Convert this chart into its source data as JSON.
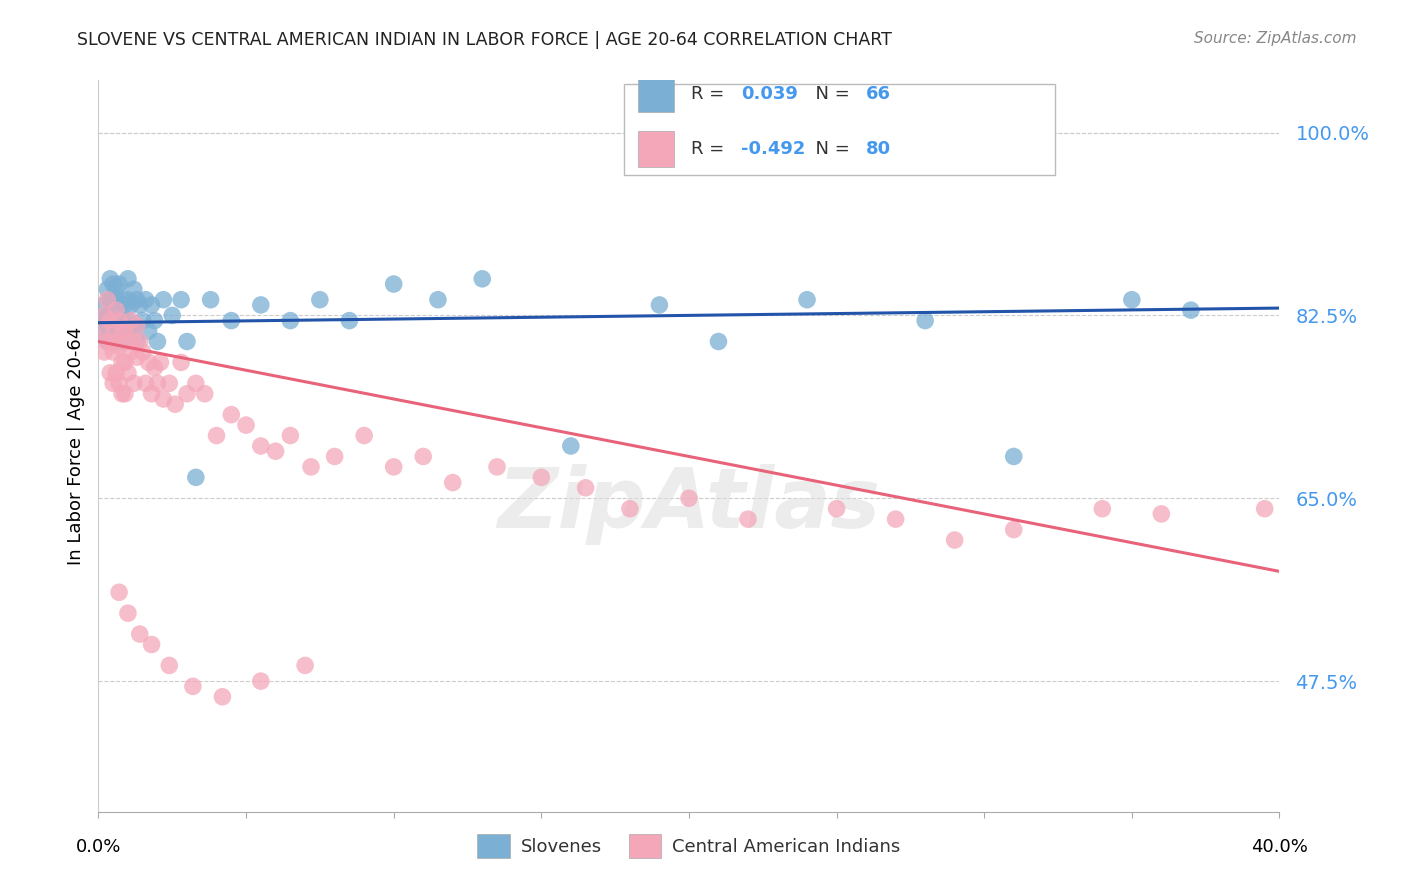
{
  "title": "SLOVENE VS CENTRAL AMERICAN INDIAN IN LABOR FORCE | AGE 20-64 CORRELATION CHART",
  "source": "Source: ZipAtlas.com",
  "ylabel": "In Labor Force | Age 20-64",
  "xmin": 0.0,
  "xmax": 0.4,
  "ymin": 0.35,
  "ymax": 1.05,
  "ytick_vals": [
    0.475,
    0.65,
    0.825,
    1.0
  ],
  "ytick_labels": [
    "47.5%",
    "65.0%",
    "82.5%",
    "100.0%"
  ],
  "color_blue": "#7BAFD4",
  "color_pink": "#F4A7B9",
  "color_blue_line": "#2255AA",
  "color_pink_line": "#E8637A",
  "color_axis_labels": "#4499EE",
  "color_grid": "#CCCCCC",
  "blue_line_y0": 0.818,
  "blue_line_y1": 0.832,
  "pink_line_y0": 0.8,
  "pink_line_y1": 0.58,
  "slovene_x": [
    0.001,
    0.002,
    0.002,
    0.003,
    0.003,
    0.003,
    0.004,
    0.004,
    0.004,
    0.004,
    0.005,
    0.005,
    0.005,
    0.005,
    0.006,
    0.006,
    0.006,
    0.006,
    0.007,
    0.007,
    0.007,
    0.007,
    0.008,
    0.008,
    0.008,
    0.009,
    0.009,
    0.009,
    0.01,
    0.01,
    0.01,
    0.011,
    0.011,
    0.012,
    0.012,
    0.013,
    0.013,
    0.014,
    0.015,
    0.016,
    0.017,
    0.018,
    0.019,
    0.02,
    0.022,
    0.025,
    0.028,
    0.03,
    0.033,
    0.038,
    0.045,
    0.055,
    0.065,
    0.075,
    0.085,
    0.1,
    0.115,
    0.13,
    0.16,
    0.19,
    0.21,
    0.24,
    0.28,
    0.31,
    0.35,
    0.37
  ],
  "slovene_y": [
    0.82,
    0.835,
    0.81,
    0.85,
    0.825,
    0.8,
    0.84,
    0.82,
    0.86,
    0.81,
    0.835,
    0.815,
    0.855,
    0.8,
    0.84,
    0.82,
    0.85,
    0.805,
    0.835,
    0.815,
    0.855,
    0.8,
    0.84,
    0.82,
    0.81,
    0.835,
    0.815,
    0.8,
    0.84,
    0.82,
    0.86,
    0.81,
    0.835,
    0.85,
    0.815,
    0.84,
    0.8,
    0.835,
    0.82,
    0.84,
    0.81,
    0.835,
    0.82,
    0.8,
    0.84,
    0.825,
    0.84,
    0.8,
    0.67,
    0.84,
    0.82,
    0.835,
    0.82,
    0.84,
    0.82,
    0.855,
    0.84,
    0.86,
    0.7,
    0.835,
    0.8,
    0.84,
    0.82,
    0.69,
    0.84,
    0.83
  ],
  "central_x": [
    0.001,
    0.002,
    0.002,
    0.003,
    0.003,
    0.004,
    0.004,
    0.004,
    0.005,
    0.005,
    0.005,
    0.006,
    0.006,
    0.006,
    0.007,
    0.007,
    0.007,
    0.008,
    0.008,
    0.008,
    0.009,
    0.009,
    0.009,
    0.01,
    0.01,
    0.011,
    0.011,
    0.012,
    0.012,
    0.013,
    0.013,
    0.014,
    0.015,
    0.016,
    0.017,
    0.018,
    0.019,
    0.02,
    0.021,
    0.022,
    0.024,
    0.026,
    0.028,
    0.03,
    0.033,
    0.036,
    0.04,
    0.045,
    0.05,
    0.055,
    0.06,
    0.065,
    0.072,
    0.08,
    0.09,
    0.1,
    0.11,
    0.12,
    0.135,
    0.15,
    0.165,
    0.18,
    0.2,
    0.22,
    0.25,
    0.27,
    0.29,
    0.31,
    0.34,
    0.36,
    0.007,
    0.01,
    0.014,
    0.018,
    0.024,
    0.032,
    0.042,
    0.055,
    0.07,
    0.395
  ],
  "central_y": [
    0.81,
    0.825,
    0.79,
    0.84,
    0.8,
    0.82,
    0.8,
    0.77,
    0.815,
    0.79,
    0.76,
    0.83,
    0.8,
    0.77,
    0.82,
    0.795,
    0.76,
    0.81,
    0.78,
    0.75,
    0.81,
    0.78,
    0.75,
    0.8,
    0.77,
    0.82,
    0.79,
    0.8,
    0.76,
    0.815,
    0.785,
    0.8,
    0.79,
    0.76,
    0.78,
    0.75,
    0.775,
    0.76,
    0.78,
    0.745,
    0.76,
    0.74,
    0.78,
    0.75,
    0.76,
    0.75,
    0.71,
    0.73,
    0.72,
    0.7,
    0.695,
    0.71,
    0.68,
    0.69,
    0.71,
    0.68,
    0.69,
    0.665,
    0.68,
    0.67,
    0.66,
    0.64,
    0.65,
    0.63,
    0.64,
    0.63,
    0.61,
    0.62,
    0.64,
    0.635,
    0.56,
    0.54,
    0.52,
    0.51,
    0.49,
    0.47,
    0.46,
    0.475,
    0.49,
    0.64
  ]
}
